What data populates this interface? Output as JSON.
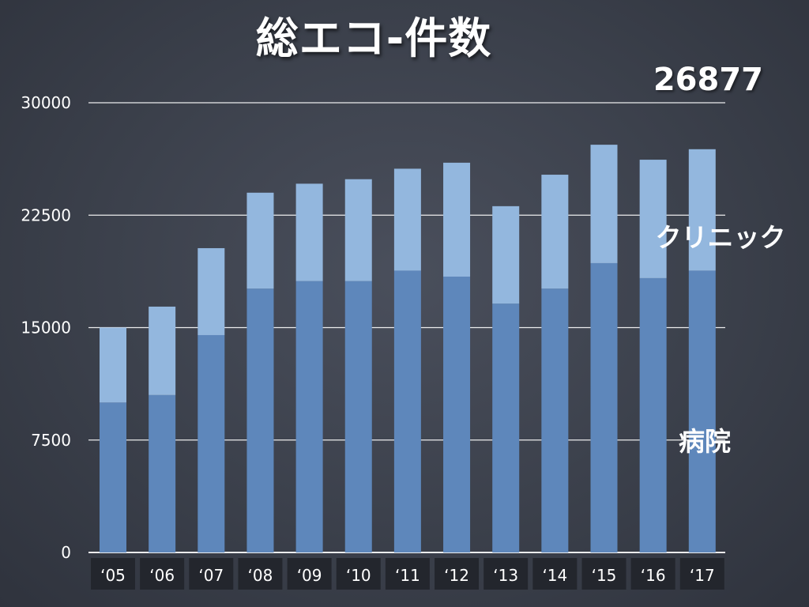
{
  "chart_data": {
    "type": "bar",
    "stacked": true,
    "title": "総エコ-件数",
    "total_annotation": "26877",
    "categories": [
      "‘05",
      "‘06",
      "‘07",
      "‘08",
      "‘09",
      "‘10",
      "‘11",
      "‘12",
      "‘13",
      "‘14",
      "‘15",
      "‘16",
      "‘17"
    ],
    "series": [
      {
        "name": "病院",
        "color": "#5e87bb",
        "values": [
          10000,
          10500,
          14500,
          17600,
          18100,
          18100,
          18800,
          18400,
          16600,
          17600,
          19300,
          18300,
          18800
        ]
      },
      {
        "name": "クリニック",
        "color": "#93b7de",
        "values": [
          5000,
          5900,
          5800,
          6400,
          6500,
          6800,
          6800,
          7600,
          6500,
          7600,
          7900,
          7900,
          8100
        ]
      }
    ],
    "yticks": [
      0,
      7500,
      15000,
      22500,
      30000
    ],
    "ylim": [
      0,
      30000
    ],
    "grid": true,
    "gridline_color": "#ffffff",
    "category_label_background": "#23262d"
  }
}
